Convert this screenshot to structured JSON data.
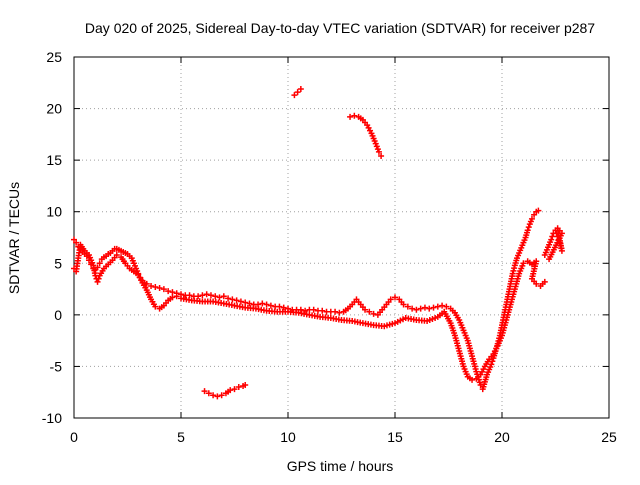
{
  "chart_data": {
    "type": "scatter",
    "title": "Day 020 of 2025, Sidereal Day-to-day VTEC variation (SDTVAR) for receiver p287",
    "xlabel": "GPS time / hours",
    "ylabel": "SDTVAR / TECUs",
    "xlim": [
      0,
      25
    ],
    "ylim": [
      -10,
      25
    ],
    "x_ticks": [
      0,
      5,
      10,
      15,
      20,
      25
    ],
    "y_ticks": [
      -10,
      -5,
      0,
      5,
      10,
      15,
      20,
      25
    ],
    "grid": true,
    "marker": "plus",
    "color": "#ff0000",
    "series": [
      {
        "name": "main-track-upper",
        "points": [
          [
            0.0,
            7.3
          ],
          [
            0.1,
            7.0
          ],
          [
            0.2,
            6.6
          ],
          [
            0.3,
            6.4
          ],
          [
            0.4,
            6.1
          ],
          [
            0.5,
            5.9
          ],
          [
            0.6,
            5.7
          ],
          [
            0.7,
            5.3
          ],
          [
            0.8,
            4.9
          ],
          [
            0.9,
            4.5
          ],
          [
            1.0,
            4.4
          ],
          [
            1.1,
            4.6
          ],
          [
            1.2,
            5.0
          ],
          [
            1.3,
            5.4
          ],
          [
            1.4,
            5.6
          ],
          [
            1.5,
            5.7
          ],
          [
            1.6,
            5.9
          ],
          [
            1.7,
            6.0
          ],
          [
            1.8,
            6.2
          ],
          [
            1.9,
            6.4
          ],
          [
            2.0,
            6.4
          ],
          [
            2.1,
            6.3
          ],
          [
            2.2,
            6.2
          ],
          [
            2.3,
            6.1
          ],
          [
            2.4,
            6.0
          ],
          [
            2.5,
            5.9
          ],
          [
            2.6,
            5.7
          ],
          [
            2.7,
            5.5
          ],
          [
            2.8,
            5.0
          ],
          [
            2.9,
            4.5
          ],
          [
            3.0,
            4.0
          ],
          [
            3.1,
            3.6
          ],
          [
            3.2,
            3.3
          ],
          [
            3.3,
            3.1
          ],
          [
            3.4,
            3.0
          ],
          [
            3.6,
            2.8
          ],
          [
            3.8,
            2.7
          ],
          [
            4.0,
            2.6
          ],
          [
            4.2,
            2.5
          ],
          [
            4.4,
            2.3
          ],
          [
            4.6,
            2.2
          ],
          [
            4.8,
            2.1
          ],
          [
            5.0,
            2.0
          ],
          [
            5.2,
            1.9
          ],
          [
            5.4,
            1.9
          ],
          [
            5.6,
            1.8
          ],
          [
            5.8,
            1.8
          ],
          [
            6.0,
            1.9
          ],
          [
            6.2,
            2.0
          ],
          [
            6.4,
            1.9
          ],
          [
            6.6,
            1.8
          ],
          [
            6.8,
            1.7
          ],
          [
            7.0,
            1.8
          ],
          [
            7.2,
            1.6
          ],
          [
            7.4,
            1.5
          ],
          [
            7.6,
            1.4
          ],
          [
            7.8,
            1.3
          ],
          [
            8.0,
            1.2
          ],
          [
            8.2,
            1.1
          ],
          [
            8.4,
            1.0
          ],
          [
            8.6,
            1.0
          ],
          [
            8.8,
            1.1
          ],
          [
            9.0,
            1.0
          ],
          [
            9.2,
            0.9
          ],
          [
            9.4,
            0.8
          ],
          [
            9.6,
            0.8
          ],
          [
            9.8,
            0.7
          ],
          [
            10.0,
            0.6
          ],
          [
            10.2,
            0.5
          ],
          [
            10.4,
            0.5
          ],
          [
            10.6,
            0.5
          ],
          [
            10.8,
            0.4
          ],
          [
            11.0,
            0.5
          ],
          [
            11.2,
            0.5
          ],
          [
            11.4,
            0.4
          ],
          [
            11.6,
            0.4
          ],
          [
            11.8,
            0.3
          ],
          [
            12.0,
            0.3
          ],
          [
            12.2,
            0.3
          ],
          [
            12.4,
            0.2
          ],
          [
            12.6,
            0.3
          ],
          [
            12.8,
            0.6
          ],
          [
            13.0,
            1.0
          ],
          [
            13.2,
            1.5
          ],
          [
            13.4,
            1.0
          ],
          [
            13.6,
            0.5
          ],
          [
            13.8,
            0.3
          ],
          [
            14.0,
            0.1
          ],
          [
            14.2,
            0.0
          ],
          [
            14.4,
            0.5
          ],
          [
            14.6,
            1.0
          ],
          [
            14.8,
            1.5
          ],
          [
            15.0,
            1.7
          ],
          [
            15.2,
            1.5
          ],
          [
            15.4,
            1.0
          ],
          [
            15.6,
            0.8
          ],
          [
            15.8,
            0.6
          ],
          [
            16.0,
            0.5
          ],
          [
            16.2,
            0.6
          ],
          [
            16.4,
            0.7
          ],
          [
            16.6,
            0.6
          ],
          [
            16.8,
            0.7
          ],
          [
            17.0,
            0.8
          ],
          [
            17.2,
            0.9
          ],
          [
            17.4,
            0.8
          ],
          [
            17.6,
            0.6
          ],
          [
            17.8,
            0.2
          ],
          [
            18.0,
            -0.5
          ],
          [
            18.2,
            -1.5
          ],
          [
            18.4,
            -2.5
          ],
          [
            18.6,
            -4.0
          ],
          [
            18.8,
            -5.5
          ],
          [
            19.0,
            -6.8
          ],
          [
            19.1,
            -7.2
          ],
          [
            19.2,
            -6.5
          ],
          [
            19.3,
            -5.8
          ],
          [
            19.4,
            -5.3
          ],
          [
            19.5,
            -4.8
          ],
          [
            19.6,
            -4.2
          ],
          [
            19.7,
            -3.5
          ],
          [
            19.8,
            -2.8
          ],
          [
            19.9,
            -2.0
          ],
          [
            20.0,
            -1.0
          ],
          [
            20.1,
            0.0
          ],
          [
            20.2,
            1.0
          ],
          [
            20.3,
            2.0
          ],
          [
            20.4,
            3.0
          ],
          [
            20.5,
            4.0
          ],
          [
            20.6,
            4.8
          ],
          [
            20.7,
            5.5
          ],
          [
            20.8,
            6.0
          ],
          [
            20.9,
            6.5
          ],
          [
            21.0,
            7.0
          ],
          [
            21.1,
            7.5
          ],
          [
            21.2,
            8.2
          ],
          [
            21.3,
            8.8
          ],
          [
            21.4,
            9.3
          ],
          [
            21.5,
            9.7
          ],
          [
            21.6,
            10.0
          ],
          [
            21.7,
            10.1
          ]
        ]
      },
      {
        "name": "main-track-lower",
        "points": [
          [
            0.0,
            4.5
          ],
          [
            0.1,
            4.2
          ],
          [
            0.3,
            6.8
          ],
          [
            0.5,
            6.2
          ],
          [
            0.7,
            5.8
          ],
          [
            0.9,
            4.8
          ],
          [
            1.0,
            3.8
          ],
          [
            1.1,
            3.2
          ],
          [
            1.2,
            3.8
          ],
          [
            1.4,
            4.5
          ],
          [
            1.6,
            4.9
          ],
          [
            1.8,
            5.3
          ],
          [
            2.0,
            5.8
          ],
          [
            2.2,
            5.6
          ],
          [
            2.4,
            5.0
          ],
          [
            2.6,
            4.5
          ],
          [
            2.8,
            4.2
          ],
          [
            3.0,
            3.9
          ],
          [
            3.2,
            3.1
          ],
          [
            3.4,
            2.4
          ],
          [
            3.6,
            1.5
          ],
          [
            3.8,
            0.8
          ],
          [
            4.0,
            0.6
          ],
          [
            4.2,
            0.9
          ],
          [
            4.4,
            1.4
          ],
          [
            4.6,
            1.7
          ],
          [
            4.8,
            1.8
          ],
          [
            5.0,
            1.6
          ],
          [
            5.5,
            1.4
          ],
          [
            6.0,
            1.3
          ],
          [
            6.5,
            1.3
          ],
          [
            7.0,
            1.1
          ],
          [
            7.5,
            0.9
          ],
          [
            8.0,
            0.7
          ],
          [
            8.5,
            0.6
          ],
          [
            9.0,
            0.4
          ],
          [
            9.5,
            0.3
          ],
          [
            10.0,
            0.3
          ],
          [
            10.5,
            0.2
          ],
          [
            11.0,
            0.0
          ],
          [
            11.5,
            -0.2
          ],
          [
            12.0,
            -0.3
          ],
          [
            12.5,
            -0.5
          ],
          [
            13.0,
            -0.6
          ],
          [
            13.5,
            -0.8
          ],
          [
            14.0,
            -1.0
          ],
          [
            14.5,
            -1.1
          ],
          [
            15.0,
            -0.8
          ],
          [
            15.5,
            -0.3
          ],
          [
            16.0,
            -0.5
          ],
          [
            16.5,
            -0.6
          ],
          [
            17.0,
            -0.2
          ],
          [
            17.3,
            0.3
          ],
          [
            17.6,
            -0.8
          ],
          [
            17.8,
            -2.0
          ],
          [
            18.0,
            -3.5
          ],
          [
            18.2,
            -5.0
          ],
          [
            18.4,
            -6.0
          ],
          [
            18.6,
            -6.3
          ],
          [
            18.8,
            -6.2
          ],
          [
            19.0,
            -5.8
          ],
          [
            19.2,
            -5.0
          ],
          [
            19.4,
            -4.3
          ],
          [
            19.6,
            -3.8
          ],
          [
            19.8,
            -3.0
          ],
          [
            20.0,
            -2.0
          ],
          [
            20.2,
            -0.5
          ],
          [
            20.4,
            1.0
          ],
          [
            20.6,
            2.5
          ],
          [
            20.8,
            4.0
          ],
          [
            21.0,
            5.0
          ],
          [
            21.2,
            5.2
          ],
          [
            21.4,
            4.9
          ],
          [
            21.6,
            5.2
          ],
          [
            21.4,
            3.5
          ],
          [
            21.6,
            3.0
          ],
          [
            21.8,
            2.8
          ],
          [
            22.0,
            3.2
          ]
        ]
      },
      {
        "name": "late-cluster",
        "points": [
          [
            22.0,
            5.8
          ],
          [
            22.1,
            6.3
          ],
          [
            22.2,
            6.8
          ],
          [
            22.3,
            7.3
          ],
          [
            22.4,
            7.9
          ],
          [
            22.5,
            8.2
          ],
          [
            22.6,
            7.6
          ],
          [
            22.7,
            7.0
          ],
          [
            22.8,
            6.2
          ],
          [
            22.6,
            8.4
          ],
          [
            22.8,
            7.9
          ],
          [
            22.2,
            5.4
          ]
        ]
      },
      {
        "name": "segment-21h",
        "points": [
          [
            10.3,
            21.3
          ],
          [
            10.45,
            21.6
          ],
          [
            10.6,
            21.9
          ]
        ]
      },
      {
        "name": "segment-19h",
        "points": [
          [
            12.9,
            19.2
          ],
          [
            13.1,
            19.3
          ],
          [
            13.3,
            19.2
          ],
          [
            13.5,
            18.9
          ],
          [
            13.7,
            18.4
          ],
          [
            13.9,
            17.6
          ],
          [
            14.1,
            16.6
          ],
          [
            14.25,
            15.8
          ],
          [
            14.35,
            15.4
          ]
        ]
      },
      {
        "name": "segment-minus7h",
        "points": [
          [
            6.1,
            -7.4
          ],
          [
            6.3,
            -7.6
          ],
          [
            6.5,
            -7.8
          ],
          [
            6.7,
            -7.9
          ],
          [
            6.9,
            -7.8
          ],
          [
            7.1,
            -7.6
          ],
          [
            7.3,
            -7.3
          ],
          [
            7.5,
            -7.2
          ],
          [
            7.7,
            -7.0
          ],
          [
            7.9,
            -6.9
          ],
          [
            8.0,
            -6.8
          ]
        ]
      }
    ]
  }
}
